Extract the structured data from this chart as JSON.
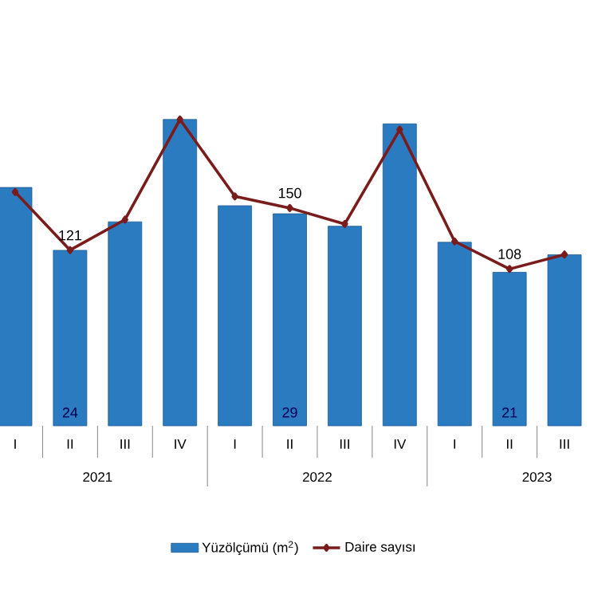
{
  "chart_data": {
    "type": "bar",
    "categories": [
      "I",
      "II",
      "III",
      "IV",
      "I",
      "II",
      "III",
      "IV",
      "I",
      "II",
      "III"
    ],
    "series": [
      {
        "name": "Yüzölçümü (m$^{2}$)",
        "color": "#2a7bc0",
        "values": [
          32.6,
          24,
          27.9,
          41.9,
          30.1,
          29,
          27.3,
          41.3,
          25.1,
          21,
          23.4
        ],
        "value_labels": [
          null,
          "24",
          null,
          null,
          null,
          "29",
          null,
          null,
          null,
          "21",
          null
        ]
      },
      {
        "name": "Daire sayısı",
        "type": "line",
        "axis": "y2",
        "color": "#7b1c1c",
        "values": [
          161,
          121,
          142,
          211,
          158,
          150,
          139,
          204,
          127,
          108,
          118
        ],
        "value_labels": [
          null,
          "121",
          null,
          null,
          null,
          "150",
          null,
          null,
          null,
          "108",
          null
        ]
      }
    ],
    "annotations": [
      "2021",
      "2022",
      "2023"
    ],
    "tick_labels": "x",
    "grid": false,
    "legend": "bottom",
    "marker": "diamond",
    "line_style": "solid"
  }
}
